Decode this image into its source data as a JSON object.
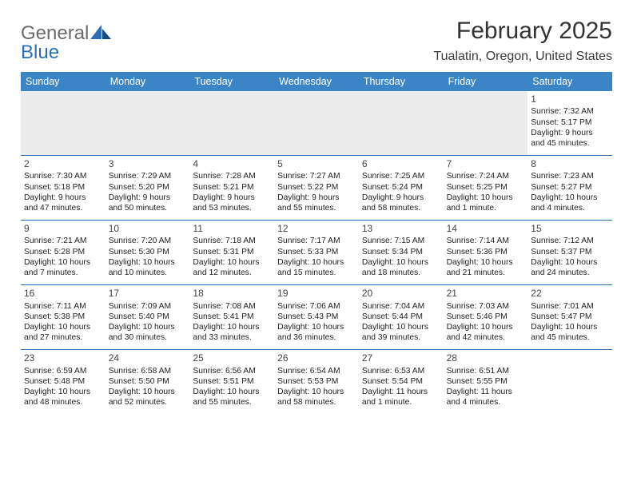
{
  "brand": {
    "name_a": "General",
    "name_b": "Blue"
  },
  "title": "February 2025",
  "location": "Tualatin, Oregon, United States",
  "colors": {
    "header_bg": "#3b85c6",
    "header_text": "#ffffff",
    "rule": "#2f6aa8",
    "filler": "#ececec",
    "text": "#222222",
    "logo_gray": "#6a6a6a",
    "logo_blue": "#2a6fb5"
  },
  "day_names": [
    "Sunday",
    "Monday",
    "Tuesday",
    "Wednesday",
    "Thursday",
    "Friday",
    "Saturday"
  ],
  "weeks": [
    [
      null,
      null,
      null,
      null,
      null,
      null,
      {
        "d": "1",
        "sr": "7:32 AM",
        "ss": "5:17 PM",
        "dl": "9 hours",
        "dm": "and 45 minutes."
      }
    ],
    [
      {
        "d": "2",
        "sr": "7:30 AM",
        "ss": "5:18 PM",
        "dl": "9 hours",
        "dm": "and 47 minutes."
      },
      {
        "d": "3",
        "sr": "7:29 AM",
        "ss": "5:20 PM",
        "dl": "9 hours",
        "dm": "and 50 minutes."
      },
      {
        "d": "4",
        "sr": "7:28 AM",
        "ss": "5:21 PM",
        "dl": "9 hours",
        "dm": "and 53 minutes."
      },
      {
        "d": "5",
        "sr": "7:27 AM",
        "ss": "5:22 PM",
        "dl": "9 hours",
        "dm": "and 55 minutes."
      },
      {
        "d": "6",
        "sr": "7:25 AM",
        "ss": "5:24 PM",
        "dl": "9 hours",
        "dm": "and 58 minutes."
      },
      {
        "d": "7",
        "sr": "7:24 AM",
        "ss": "5:25 PM",
        "dl": "10 hours",
        "dm": "and 1 minute."
      },
      {
        "d": "8",
        "sr": "7:23 AM",
        "ss": "5:27 PM",
        "dl": "10 hours",
        "dm": "and 4 minutes."
      }
    ],
    [
      {
        "d": "9",
        "sr": "7:21 AM",
        "ss": "5:28 PM",
        "dl": "10 hours",
        "dm": "and 7 minutes."
      },
      {
        "d": "10",
        "sr": "7:20 AM",
        "ss": "5:30 PM",
        "dl": "10 hours",
        "dm": "and 10 minutes."
      },
      {
        "d": "11",
        "sr": "7:18 AM",
        "ss": "5:31 PM",
        "dl": "10 hours",
        "dm": "and 12 minutes."
      },
      {
        "d": "12",
        "sr": "7:17 AM",
        "ss": "5:33 PM",
        "dl": "10 hours",
        "dm": "and 15 minutes."
      },
      {
        "d": "13",
        "sr": "7:15 AM",
        "ss": "5:34 PM",
        "dl": "10 hours",
        "dm": "and 18 minutes."
      },
      {
        "d": "14",
        "sr": "7:14 AM",
        "ss": "5:36 PM",
        "dl": "10 hours",
        "dm": "and 21 minutes."
      },
      {
        "d": "15",
        "sr": "7:12 AM",
        "ss": "5:37 PM",
        "dl": "10 hours",
        "dm": "and 24 minutes."
      }
    ],
    [
      {
        "d": "16",
        "sr": "7:11 AM",
        "ss": "5:38 PM",
        "dl": "10 hours",
        "dm": "and 27 minutes."
      },
      {
        "d": "17",
        "sr": "7:09 AM",
        "ss": "5:40 PM",
        "dl": "10 hours",
        "dm": "and 30 minutes."
      },
      {
        "d": "18",
        "sr": "7:08 AM",
        "ss": "5:41 PM",
        "dl": "10 hours",
        "dm": "and 33 minutes."
      },
      {
        "d": "19",
        "sr": "7:06 AM",
        "ss": "5:43 PM",
        "dl": "10 hours",
        "dm": "and 36 minutes."
      },
      {
        "d": "20",
        "sr": "7:04 AM",
        "ss": "5:44 PM",
        "dl": "10 hours",
        "dm": "and 39 minutes."
      },
      {
        "d": "21",
        "sr": "7:03 AM",
        "ss": "5:46 PM",
        "dl": "10 hours",
        "dm": "and 42 minutes."
      },
      {
        "d": "22",
        "sr": "7:01 AM",
        "ss": "5:47 PM",
        "dl": "10 hours",
        "dm": "and 45 minutes."
      }
    ],
    [
      {
        "d": "23",
        "sr": "6:59 AM",
        "ss": "5:48 PM",
        "dl": "10 hours",
        "dm": "and 48 minutes."
      },
      {
        "d": "24",
        "sr": "6:58 AM",
        "ss": "5:50 PM",
        "dl": "10 hours",
        "dm": "and 52 minutes."
      },
      {
        "d": "25",
        "sr": "6:56 AM",
        "ss": "5:51 PM",
        "dl": "10 hours",
        "dm": "and 55 minutes."
      },
      {
        "d": "26",
        "sr": "6:54 AM",
        "ss": "5:53 PM",
        "dl": "10 hours",
        "dm": "and 58 minutes."
      },
      {
        "d": "27",
        "sr": "6:53 AM",
        "ss": "5:54 PM",
        "dl": "11 hours",
        "dm": "and 1 minute."
      },
      {
        "d": "28",
        "sr": "6:51 AM",
        "ss": "5:55 PM",
        "dl": "11 hours",
        "dm": "and 4 minutes."
      },
      null
    ]
  ],
  "labels": {
    "sunrise": "Sunrise:",
    "sunset": "Sunset:",
    "daylight": "Daylight:"
  }
}
